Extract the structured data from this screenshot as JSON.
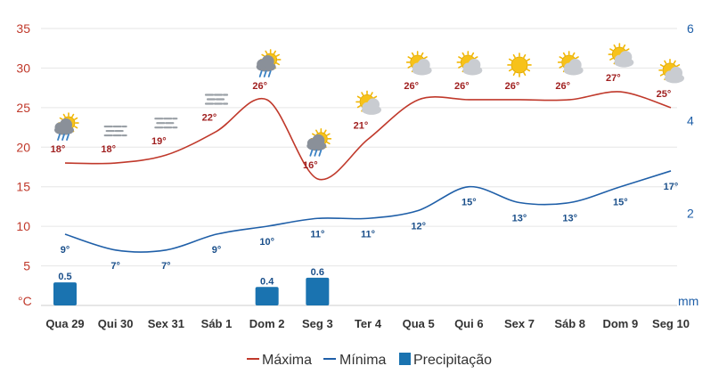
{
  "chart_data": {
    "type": "line",
    "categories": [
      "Qua 29",
      "Qui 30",
      "Sex 31",
      "Sáb 1",
      "Dom 2",
      "Seg 3",
      "Ter 4",
      "Qua 5",
      "Qui 6",
      "Sex 7",
      "Sáb 8",
      "Dom 9",
      "Seg 10"
    ],
    "y_left": {
      "unit": "°C",
      "ticks": [
        "35",
        "30",
        "25",
        "20",
        "15",
        "10",
        "5"
      ],
      "range": [
        0,
        35
      ]
    },
    "y_right": {
      "unit": "mm",
      "ticks": [
        "6",
        "4",
        "2"
      ],
      "range": [
        0,
        6
      ]
    },
    "grid": true,
    "legend_position": "bottom",
    "series": [
      {
        "name": "Máxima",
        "color": "#c0392b",
        "values": [
          18,
          18,
          19,
          22,
          26,
          16,
          21,
          26,
          26,
          26,
          26,
          27,
          25
        ],
        "labels": [
          "18°",
          "18°",
          "19°",
          "22°",
          "26°",
          "16°",
          "21°",
          "26°",
          "26°",
          "26°",
          "26°",
          "27°",
          "25°"
        ]
      },
      {
        "name": "Mínima",
        "color": "#1f5fa8",
        "values": [
          9,
          7,
          7,
          9,
          10,
          11,
          11,
          12,
          15,
          13,
          13,
          15,
          17
        ],
        "labels": [
          "9°",
          "7°",
          "7°",
          "9°",
          "10°",
          "11°",
          "11°",
          "12°",
          "15°",
          "13°",
          "13°",
          "15°",
          "17°"
        ]
      },
      {
        "name": "Precipitação",
        "color": "#1a73b0",
        "values": [
          0.5,
          null,
          null,
          null,
          0.4,
          0.6,
          null,
          null,
          null,
          null,
          null,
          null,
          null
        ],
        "labels": [
          "0.5",
          "",
          "",
          "",
          "0.4",
          "0.6",
          "",
          "",
          "",
          "",
          "",
          "",
          ""
        ]
      }
    ],
    "weather_icons": [
      "sun-cloud-rain-icon",
      "fog-icon",
      "fog-icon",
      "fog-icon",
      "sun-cloud-rain-icon",
      "sun-cloud-rain-icon",
      "sun-cloud-icon",
      "sun-cloud-icon",
      "sun-cloud-icon",
      "sun-icon",
      "sun-cloud-icon",
      "sun-cloud-icon",
      "sun-cloud-icon"
    ]
  },
  "legend": {
    "max": "Máxima",
    "min": "Mínima",
    "precip": "Precipitação"
  }
}
